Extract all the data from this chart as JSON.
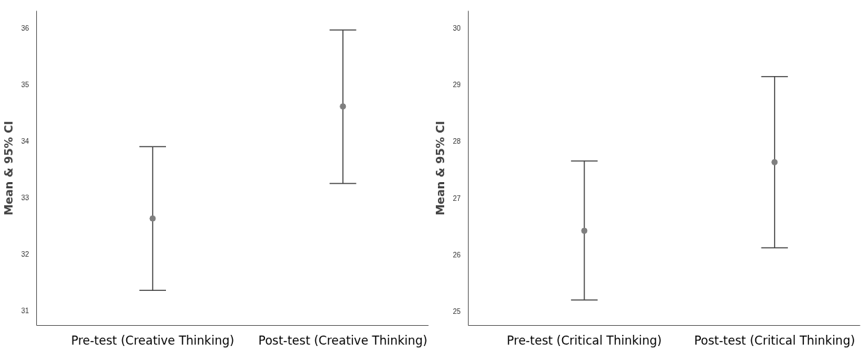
{
  "chart_data": [
    {
      "type": "scatter",
      "ylabel": "Mean & 95% CI",
      "categories": [
        "Pre-test (Creative Thinking)",
        "Post-test (Creative Thinking)"
      ],
      "ylim": [
        30.74,
        36.3
      ],
      "yticks": [
        31,
        32,
        33,
        34,
        35,
        36
      ],
      "grid": false,
      "marker": "circle",
      "series": [
        {
          "color": "#7f7f7f",
          "values": [
            32.63,
            34.61
          ],
          "errors": [
            [
              31.36,
              33.9
            ],
            [
              33.25,
              35.96
            ]
          ]
        }
      ]
    },
    {
      "type": "scatter",
      "ylabel": "Mean & 95% CI",
      "categories": [
        "Pre-test (Critical Thinking)",
        "Post-test (Critical Thinking)"
      ],
      "ylim": [
        24.75,
        30.3
      ],
      "yticks": [
        25,
        26,
        27,
        28,
        29,
        30
      ],
      "grid": false,
      "marker": "circle",
      "series": [
        {
          "color": "#7f7f7f",
          "values": [
            26.42,
            27.63
          ],
          "errors": [
            [
              25.2,
              27.65
            ],
            [
              26.12,
              29.14
            ]
          ]
        }
      ]
    }
  ]
}
